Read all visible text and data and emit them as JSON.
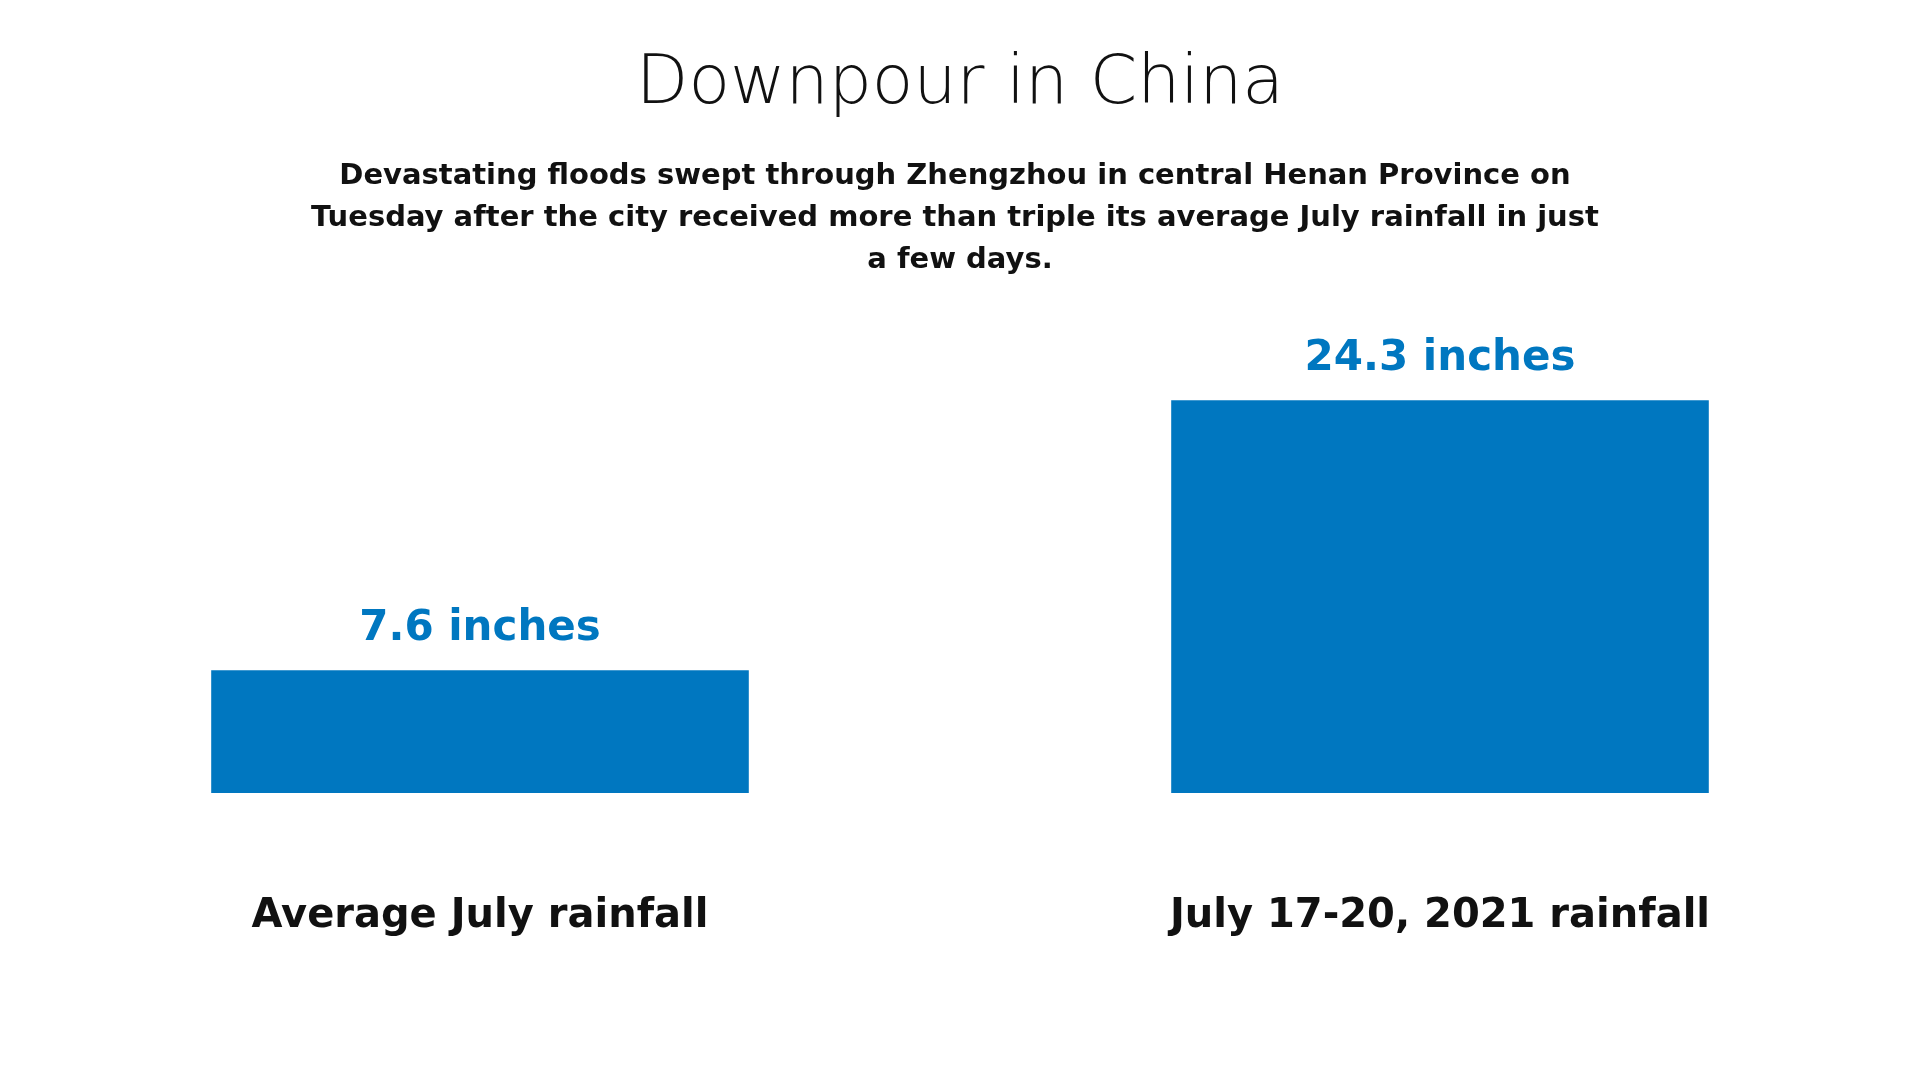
{
  "chart_data": {
    "type": "bar",
    "title": "Downpour in China",
    "subtitle": "Devastating floods swept through Zhengzhou in central Henan Province on Tuesday after the city received more than triple its average July rainfall in just a few days.",
    "categories": [
      "Average July rainfall",
      "July 17-20, 2021 rainfall"
    ],
    "values": [
      7.6,
      24.3
    ],
    "value_labels": [
      "7.6 inches",
      "24.3 inches"
    ],
    "color": "#0077c0",
    "tick_labels": "x"
  }
}
